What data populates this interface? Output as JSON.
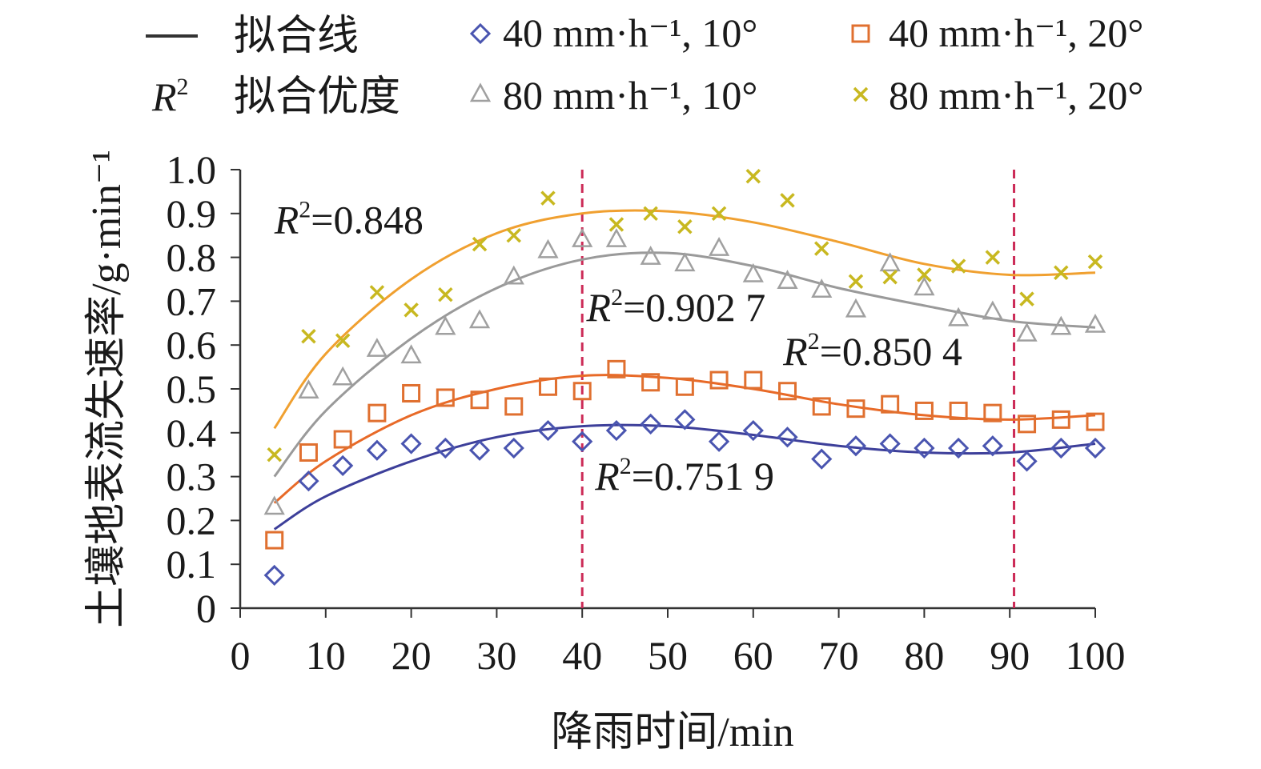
{
  "chart_data": {
    "type": "scatter",
    "xlabel": "降雨时间/min",
    "ylabel": "土壤地表流失速率/g·min⁻¹",
    "xlim": [
      0,
      100
    ],
    "ylim": [
      0,
      1.0
    ],
    "x_ticks": [
      "0",
      "10",
      "20",
      "30",
      "40",
      "50",
      "60",
      "70",
      "80",
      "90",
      "100"
    ],
    "y_ticks": [
      "0",
      "0.1",
      "0.2",
      "0.3",
      "0.4",
      "0.5",
      "0.6",
      "0.7",
      "0.8",
      "0.9",
      "1.0"
    ],
    "grid": false,
    "reference_lines_x": [
      40,
      90.5
    ],
    "legend": {
      "fit_line_label": "拟合线",
      "r2_symbol": "R",
      "r2_sup": "2",
      "r2_label": "拟合优度"
    },
    "series": [
      {
        "name": "40 mm·h⁻¹, 10°",
        "marker": "diamond",
        "color": "#4a55b0",
        "line_color": "#3d3f9a",
        "x": [
          4,
          8,
          12,
          16,
          20,
          24,
          28,
          32,
          36,
          40,
          44,
          48,
          52,
          56,
          60,
          64,
          68,
          72,
          76,
          80,
          84,
          88,
          92,
          96,
          100
        ],
        "y": [
          0.075,
          0.29,
          0.325,
          0.36,
          0.375,
          0.365,
          0.36,
          0.365,
          0.405,
          0.38,
          0.405,
          0.42,
          0.43,
          0.38,
          0.405,
          0.39,
          0.34,
          0.37,
          0.375,
          0.365,
          0.365,
          0.37,
          0.335,
          0.365,
          0.365
        ],
        "r2_text": "=0.751 9",
        "r2_anchor": [
          41.5,
          0.27
        ],
        "fit_x": [
          4,
          10,
          20,
          30,
          40,
          50,
          60,
          70,
          80,
          90,
          100
        ],
        "fit_y": [
          0.18,
          0.255,
          0.335,
          0.39,
          0.415,
          0.415,
          0.395,
          0.37,
          0.355,
          0.355,
          0.375
        ]
      },
      {
        "name": "40 mm·h⁻¹, 20°",
        "marker": "square",
        "color": "#e07030",
        "line_color": "#e86a28",
        "x": [
          4,
          8,
          12,
          16,
          20,
          24,
          28,
          32,
          36,
          40,
          44,
          48,
          52,
          56,
          60,
          64,
          68,
          72,
          76,
          80,
          84,
          88,
          92,
          96,
          100
        ],
        "y": [
          0.155,
          0.355,
          0.385,
          0.445,
          0.49,
          0.48,
          0.475,
          0.46,
          0.505,
          0.495,
          0.545,
          0.515,
          0.505,
          0.52,
          0.52,
          0.495,
          0.46,
          0.455,
          0.465,
          0.45,
          0.45,
          0.445,
          0.42,
          0.43,
          0.425
        ],
        "r2_text": "=0.850 4",
        "r2_anchor": [
          63.5,
          0.555
        ],
        "fit_x": [
          4,
          10,
          20,
          30,
          40,
          50,
          60,
          70,
          80,
          90,
          100
        ],
        "fit_y": [
          0.24,
          0.335,
          0.44,
          0.5,
          0.53,
          0.525,
          0.5,
          0.465,
          0.44,
          0.43,
          0.44
        ]
      },
      {
        "name": "80 mm·h⁻¹, 10°",
        "marker": "triangle",
        "color": "#a0a0a0",
        "line_color": "#9a9a9a",
        "x": [
          4,
          8,
          12,
          16,
          20,
          24,
          28,
          32,
          36,
          40,
          44,
          48,
          52,
          56,
          60,
          64,
          68,
          72,
          76,
          80,
          84,
          88,
          92,
          96,
          100
        ],
        "y": [
          0.23,
          0.495,
          0.525,
          0.59,
          0.575,
          0.64,
          0.655,
          0.755,
          0.815,
          0.84,
          0.84,
          0.8,
          0.785,
          0.82,
          0.76,
          0.745,
          0.725,
          0.68,
          0.785,
          0.73,
          0.66,
          0.675,
          0.625,
          0.64,
          0.645
        ],
        "r2_text": "=0.902 7",
        "r2_anchor": [
          40.5,
          0.655
        ],
        "fit_x": [
          4,
          10,
          20,
          30,
          40,
          50,
          60,
          70,
          80,
          90,
          100
        ],
        "fit_y": [
          0.3,
          0.45,
          0.615,
          0.73,
          0.795,
          0.81,
          0.78,
          0.73,
          0.69,
          0.655,
          0.64
        ]
      },
      {
        "name": "80 mm·h⁻¹, 20°",
        "marker": "cross",
        "color": "#c8b820",
        "line_color": "#f0a030",
        "x": [
          4,
          8,
          12,
          16,
          20,
          24,
          28,
          32,
          36,
          44,
          48,
          52,
          56,
          60,
          64,
          68,
          72,
          76,
          80,
          84,
          88,
          92,
          96,
          100
        ],
        "y": [
          0.35,
          0.62,
          0.61,
          0.72,
          0.68,
          0.715,
          0.83,
          0.85,
          0.935,
          0.875,
          0.9,
          0.87,
          0.9,
          0.985,
          0.93,
          0.82,
          0.745,
          0.755,
          0.76,
          0.78,
          0.8,
          0.705,
          0.765,
          0.79
        ],
        "r2_text": "=0.848",
        "r2_anchor": [
          4,
          0.855
        ],
        "fit_x": [
          4,
          10,
          20,
          30,
          40,
          50,
          60,
          70,
          80,
          90,
          100
        ],
        "fit_y": [
          0.41,
          0.58,
          0.75,
          0.855,
          0.9,
          0.905,
          0.88,
          0.835,
          0.785,
          0.76,
          0.765
        ]
      }
    ]
  }
}
